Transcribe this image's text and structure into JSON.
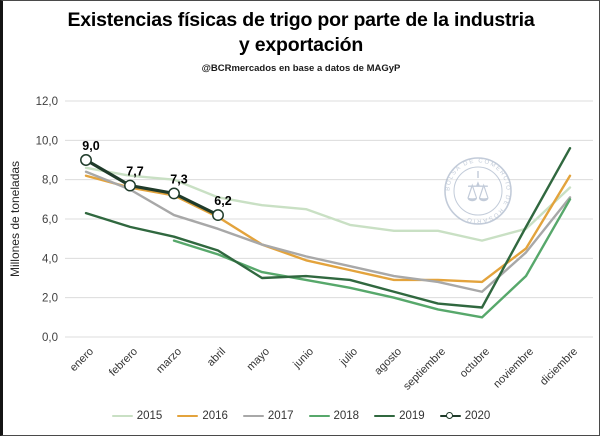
{
  "title": "Existencias físicas de trigo por parte de la industria y exportación",
  "subtitle": "@BCRmercados en base a datos de MAGyP",
  "watermark": {
    "ring_text": "BOLSA DE COMERCIO DE ROSARIO",
    "symbol": "scales-caduceus-icon",
    "color": "#a9b6c9"
  },
  "chart_data": {
    "type": "line",
    "title": "Existencias físicas de trigo por parte de la industria y exportación",
    "subtitle": "@BCRmercados en base a datos de MAGyP",
    "xlabel": "",
    "ylabel": "Millones de toneladas",
    "ylim": [
      0,
      12
    ],
    "grid": true,
    "legend_position": "bottom",
    "x_categories": [
      "enero",
      "febrero",
      "marzo",
      "abril",
      "mayo",
      "junio",
      "julio",
      "agosto",
      "septiembre",
      "octubre",
      "noviembre",
      "diciembre"
    ],
    "yticks": [
      {
        "value": 0,
        "label": "0,0"
      },
      {
        "value": 2,
        "label": "2,0"
      },
      {
        "value": 4,
        "label": "4,0"
      },
      {
        "value": 6,
        "label": "6,0"
      },
      {
        "value": 8,
        "label": "8,0"
      },
      {
        "value": 10,
        "label": "10,0"
      },
      {
        "value": 12,
        "label": "12,0"
      }
    ],
    "series": [
      {
        "name": "2015",
        "color": "#c9e0c4",
        "values": [
          8.6,
          8.2,
          8.0,
          7.1,
          6.7,
          6.5,
          5.7,
          5.4,
          5.4,
          4.9,
          5.5,
          7.6
        ]
      },
      {
        "name": "2016",
        "color": "#e3a33c",
        "values": [
          8.2,
          7.6,
          7.2,
          6.1,
          4.7,
          3.9,
          3.4,
          2.9,
          2.9,
          2.8,
          4.5,
          8.2
        ]
      },
      {
        "name": "2017",
        "color": "#a8a8a8",
        "values": [
          8.4,
          7.5,
          6.2,
          5.5,
          4.7,
          4.1,
          3.6,
          3.1,
          2.8,
          2.3,
          4.3,
          7.1
        ]
      },
      {
        "name": "2018",
        "color": "#57a86b",
        "values": [
          null,
          null,
          4.9,
          4.2,
          3.3,
          2.9,
          2.5,
          2.0,
          1.4,
          1.0,
          3.1,
          7.0
        ]
      },
      {
        "name": "2019",
        "color": "#30683f",
        "values": [
          6.3,
          5.6,
          5.1,
          4.4,
          3.0,
          3.1,
          2.9,
          2.3,
          1.7,
          1.5,
          5.6,
          9.6
        ]
      },
      {
        "name": "2020",
        "color": "#1f3b2a",
        "marker": "circle-white",
        "values": [
          9.0,
          7.7,
          7.3,
          6.2,
          null,
          null,
          null,
          null,
          null,
          null,
          null,
          null
        ],
        "point_labels": [
          "9,0",
          "7,7",
          "7,3",
          "6,2"
        ]
      }
    ]
  }
}
